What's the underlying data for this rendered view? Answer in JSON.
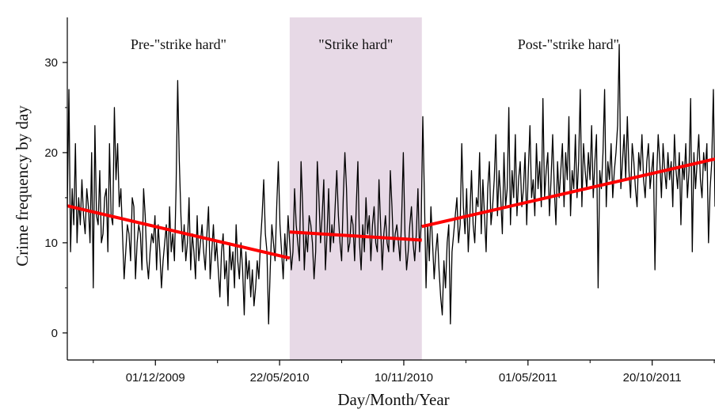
{
  "chart_data": {
    "type": "line",
    "title": "",
    "xlabel": "Day/Month/Year",
    "ylabel": "Crime frequency by day",
    "x_ticks": [
      "01/12/2009",
      "22/05/2010",
      "10/11/2010",
      "01/05/2011",
      "20/10/2011"
    ],
    "x_start": "2009-08-01",
    "x_end": "2012-01-15",
    "ylim": [
      -3,
      35
    ],
    "y_ticks": [
      0,
      10,
      20,
      30
    ],
    "grid": false,
    "phases": [
      {
        "label": "Pre-\"strike hard\"",
        "start": "2009-08-01",
        "end": "2010-06-05",
        "shaded": false
      },
      {
        "label": "\"Strike hard\"",
        "start": "2010-06-05",
        "end": "2010-12-05",
        "shaded": true
      },
      {
        "label": "Post-\"strike hard\"",
        "start": "2010-12-05",
        "end": "2012-01-15",
        "shaded": false
      }
    ],
    "colors": {
      "series": "#000000",
      "trend": "#ff0000",
      "shade": "#e7d9e6"
    },
    "series": [
      {
        "type": "line",
        "x_dates_approx": "daily",
        "values_sampled": [
          14,
          27,
          9,
          16,
          12,
          21,
          10,
          15,
          12,
          17,
          13,
          11,
          16,
          14,
          10,
          20,
          5,
          23,
          13,
          12,
          18,
          10,
          11,
          15,
          16,
          9,
          21,
          13,
          12,
          25,
          17,
          21,
          14,
          16,
          11,
          6,
          9,
          12,
          11,
          8,
          15,
          14,
          6,
          10,
          12,
          11,
          7,
          16,
          13,
          8,
          6,
          9,
          11,
          10,
          13,
          7,
          12,
          9,
          5,
          8,
          10,
          12,
          7,
          14,
          9,
          11,
          8,
          16,
          28,
          19,
          13,
          9,
          12,
          8,
          10,
          15,
          7,
          11,
          9,
          6,
          13,
          8,
          10,
          12,
          9,
          7,
          11,
          14,
          6,
          9,
          12,
          8,
          10,
          7,
          4,
          9,
          11,
          6,
          8,
          3,
          10,
          7,
          9,
          5,
          12,
          8,
          6,
          10,
          7,
          2,
          9,
          6,
          8,
          4,
          7,
          3,
          5,
          8,
          6,
          10,
          13,
          17,
          11,
          9,
          1,
          7,
          12,
          10,
          8,
          14,
          19,
          12,
          9,
          6,
          11,
          8,
          13,
          10,
          7,
          9,
          16,
          12,
          10,
          8,
          19,
          14,
          7,
          11,
          9,
          13,
          12,
          10,
          6,
          9,
          19,
          15,
          10,
          13,
          17,
          7,
          11,
          16,
          9,
          12,
          10,
          14,
          18,
          13,
          10,
          8,
          15,
          20,
          16,
          9,
          10,
          13,
          12,
          8,
          14,
          19,
          10,
          7,
          12,
          9,
          15,
          11,
          13,
          8,
          12,
          14,
          10,
          9,
          17,
          12,
          7,
          11,
          13,
          10,
          9,
          18,
          14,
          9,
          11,
          12,
          10,
          8,
          13,
          20,
          11,
          7,
          9,
          12,
          14,
          10,
          8,
          11,
          16,
          9,
          12,
          24,
          15,
          5,
          12,
          8,
          14,
          10,
          6,
          9,
          11,
          7,
          4,
          2,
          8,
          5,
          10,
          12,
          1,
          9,
          11,
          13,
          15,
          10,
          12,
          21,
          14,
          11,
          16,
          9,
          13,
          18,
          12,
          10,
          15,
          14,
          20,
          11,
          17,
          13,
          9,
          16,
          19,
          12,
          14,
          17,
          22,
          13,
          18,
          15,
          11,
          20,
          14,
          16,
          25,
          12,
          18,
          15,
          22,
          13,
          17,
          19,
          14,
          16,
          20,
          12,
          18,
          23,
          15,
          17,
          13,
          21,
          16,
          19,
          14,
          26,
          15,
          18,
          20,
          13,
          17,
          22,
          16,
          12,
          19,
          15,
          18,
          21,
          14,
          20,
          17,
          24,
          13,
          18,
          16,
          22,
          15,
          19,
          27,
          14,
          21,
          18,
          16,
          20,
          17,
          23,
          15,
          19,
          22,
          5,
          18,
          16,
          20,
          27,
          14,
          19,
          17,
          21,
          15,
          18,
          20,
          23,
          32,
          16,
          19,
          22,
          17,
          24,
          18,
          15,
          21,
          19,
          16,
          14,
          20,
          18,
          22,
          17,
          15,
          19,
          21,
          16,
          18,
          20,
          7,
          17,
          22,
          19,
          15,
          21,
          18,
          16,
          20,
          17,
          19,
          14,
          22,
          18,
          16,
          20,
          12,
          19,
          17,
          21,
          15,
          18,
          26,
          9,
          20,
          16,
          19,
          22,
          17,
          15,
          20,
          18,
          21,
          10,
          16,
          19,
          27,
          14
        ]
      }
    ],
    "trend_lines": [
      {
        "start": "2009-08-01",
        "end": "2010-06-05",
        "y_start": 14.1,
        "y_end": 8.3
      },
      {
        "start": "2010-06-05",
        "end": "2010-12-05",
        "y_start": 11.2,
        "y_end": 10.3
      },
      {
        "start": "2010-12-05",
        "end": "2012-01-15",
        "y_start": 11.8,
        "y_end": 19.3
      }
    ]
  }
}
